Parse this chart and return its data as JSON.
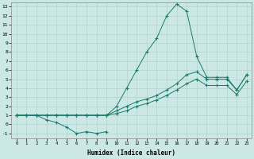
{
  "xlabel": "Humidex (Indice chaleur)",
  "background_color": "#cce8e4",
  "grid_color": "#aacccc",
  "line_color": "#1a7a6e",
  "xlim": [
    -0.5,
    23.5
  ],
  "ylim": [
    -1.5,
    13.5
  ],
  "xticks": [
    0,
    1,
    2,
    3,
    4,
    5,
    6,
    7,
    8,
    9,
    10,
    11,
    12,
    13,
    14,
    15,
    16,
    17,
    18,
    19,
    20,
    21,
    22,
    23
  ],
  "yticks": [
    -1,
    0,
    1,
    2,
    3,
    4,
    5,
    6,
    7,
    8,
    9,
    10,
    11,
    12,
    13
  ],
  "series1_x": [
    0,
    1,
    2,
    3,
    4,
    5,
    6,
    7,
    8,
    9
  ],
  "series1_y": [
    1,
    1,
    1,
    0.5,
    0.2,
    -0.3,
    -1,
    -0.8,
    -1,
    -0.8
  ],
  "series1b_x": [
    8
  ],
  "series1b_y": [
    -0.7
  ],
  "series2_x": [
    0,
    1,
    2,
    3,
    4,
    5,
    6,
    7,
    8,
    9,
    10,
    11,
    12,
    13,
    14,
    15,
    16,
    17,
    18,
    19,
    20,
    21,
    22,
    23
  ],
  "series2_y": [
    1,
    1,
    1,
    1,
    1,
    1,
    1,
    1,
    1,
    1,
    2,
    4,
    6,
    8,
    9.5,
    12,
    13.3,
    12.5,
    7.5,
    5.2,
    5.2,
    5.2,
    3.8,
    5.5
  ],
  "series3_x": [
    0,
    1,
    2,
    3,
    4,
    5,
    6,
    7,
    8,
    9,
    10,
    11,
    12,
    13,
    14,
    15,
    16,
    17,
    18,
    19,
    20,
    21,
    22,
    23
  ],
  "series3_y": [
    1,
    1,
    1,
    1,
    1,
    1,
    1,
    1,
    1,
    1,
    1.5,
    2,
    2.5,
    2.8,
    3.2,
    3.8,
    4.5,
    5.5,
    5.8,
    5.0,
    5.0,
    5.0,
    3.8,
    5.5
  ],
  "series4_x": [
    0,
    1,
    2,
    3,
    4,
    5,
    6,
    7,
    8,
    9,
    10,
    11,
    12,
    13,
    14,
    15,
    16,
    17,
    18,
    19,
    20,
    21,
    22,
    23
  ],
  "series4_y": [
    1,
    1,
    1,
    1,
    1,
    1,
    1,
    1,
    1,
    1,
    1.2,
    1.5,
    2.0,
    2.3,
    2.7,
    3.2,
    3.8,
    4.5,
    5.0,
    4.3,
    4.3,
    4.3,
    3.3,
    4.8
  ]
}
